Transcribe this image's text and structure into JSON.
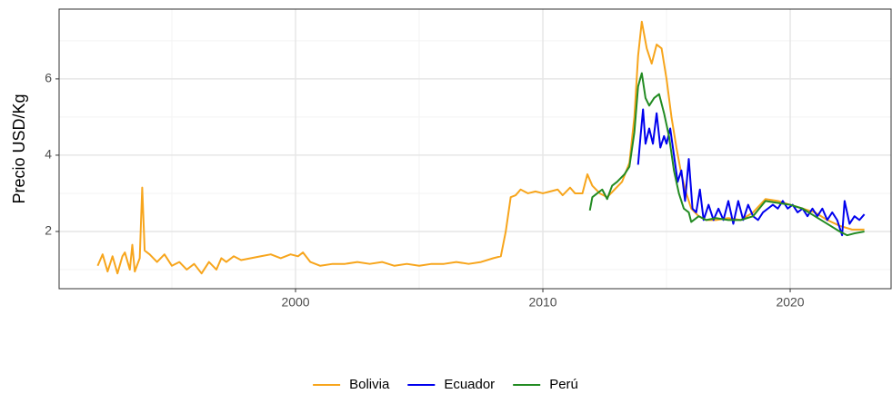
{
  "chart_data": {
    "type": "line",
    "y_label": "Precio USD/Kg",
    "xlim": [
      1990.44,
      2024.08
    ],
    "ylim": [
      0.5,
      7.83
    ],
    "xticks": [
      2000,
      2010,
      2020
    ],
    "yticks": [
      2,
      4,
      6
    ],
    "x_minor_ticks": [
      1995,
      2005,
      2015
    ],
    "y_minor_ticks": [
      1,
      3,
      5,
      7
    ],
    "grid": true,
    "legend": "bottom",
    "series": [
      {
        "name": "Bolivia",
        "color": "#f7a51c",
        "x": [
          1992.0,
          1992.2,
          1992.4,
          1992.6,
          1992.8,
          1993.0,
          1993.1,
          1993.3,
          1993.4,
          1993.5,
          1993.7,
          1993.8,
          1993.9,
          1994.1,
          1994.4,
          1994.7,
          1995.0,
          1995.3,
          1995.6,
          1995.9,
          1996.2,
          1996.5,
          1996.8,
          1997.0,
          1997.2,
          1997.5,
          1997.8,
          1998.2,
          1998.6,
          1999.0,
          1999.4,
          1999.8,
          2000.1,
          2000.3,
          2000.6,
          2001.0,
          2001.5,
          2002.0,
          2002.5,
          2003.0,
          2003.5,
          2004.0,
          2004.5,
          2005.0,
          2005.5,
          2006.0,
          2006.5,
          2007.0,
          2007.5,
          2008.0,
          2008.3,
          2008.5,
          2008.7,
          2008.9,
          2009.1,
          2009.4,
          2009.7,
          2010.0,
          2010.3,
          2010.6,
          2010.8,
          2011.1,
          2011.3,
          2011.6,
          2011.8,
          2012.0,
          2012.3,
          2012.6,
          2012.9,
          2013.2,
          2013.5,
          2013.7,
          2013.85,
          2014.0,
          2014.2,
          2014.4,
          2014.6,
          2014.8,
          2015.0,
          2015.2,
          2015.4,
          2015.6,
          2015.8,
          2016.0,
          2016.3,
          2016.6,
          2017.0,
          2017.5,
          2018.0,
          2018.5,
          2019.0,
          2019.5,
          2020.0,
          2020.5,
          2021.0,
          2021.5,
          2022.0,
          2022.5,
          2023.0
        ],
        "values": [
          1.1,
          1.4,
          0.95,
          1.35,
          0.9,
          1.35,
          1.45,
          1.0,
          1.65,
          0.95,
          1.3,
          3.15,
          1.5,
          1.4,
          1.2,
          1.4,
          1.1,
          1.2,
          1.0,
          1.15,
          0.9,
          1.2,
          1.0,
          1.3,
          1.2,
          1.35,
          1.25,
          1.3,
          1.35,
          1.4,
          1.3,
          1.4,
          1.35,
          1.45,
          1.2,
          1.1,
          1.15,
          1.15,
          1.2,
          1.15,
          1.2,
          1.1,
          1.15,
          1.1,
          1.15,
          1.15,
          1.2,
          1.15,
          1.2,
          1.3,
          1.35,
          2.0,
          2.9,
          2.95,
          3.1,
          3.0,
          3.05,
          3.0,
          3.05,
          3.1,
          2.95,
          3.15,
          3.0,
          3.0,
          3.5,
          3.2,
          3.0,
          2.9,
          3.1,
          3.3,
          3.8,
          5.0,
          6.6,
          7.5,
          6.8,
          6.4,
          6.9,
          6.8,
          6.0,
          5.0,
          4.2,
          3.5,
          3.0,
          2.6,
          2.4,
          2.3,
          2.3,
          2.35,
          2.3,
          2.5,
          2.85,
          2.8,
          2.7,
          2.6,
          2.5,
          2.3,
          2.15,
          2.05,
          2.05
        ]
      },
      {
        "name": "Ecuador",
        "color": "#0000ee",
        "x": [
          2013.85,
          2013.95,
          2014.05,
          2014.15,
          2014.3,
          2014.45,
          2014.6,
          2014.75,
          2014.9,
          2015.0,
          2015.15,
          2015.3,
          2015.45,
          2015.6,
          2015.75,
          2015.9,
          2016.05,
          2016.2,
          2016.35,
          2016.5,
          2016.7,
          2016.9,
          2017.1,
          2017.3,
          2017.5,
          2017.7,
          2017.9,
          2018.1,
          2018.3,
          2018.5,
          2018.7,
          2018.9,
          2019.1,
          2019.3,
          2019.5,
          2019.7,
          2019.9,
          2020.1,
          2020.3,
          2020.5,
          2020.7,
          2020.9,
          2021.1,
          2021.3,
          2021.5,
          2021.7,
          2021.9,
          2022.1,
          2022.2,
          2022.4,
          2022.6,
          2022.8,
          2023.0
        ],
        "values": [
          3.75,
          4.5,
          5.2,
          4.3,
          4.7,
          4.3,
          5.1,
          4.2,
          4.5,
          4.3,
          4.7,
          4.0,
          3.3,
          3.6,
          2.8,
          3.9,
          2.6,
          2.5,
          3.1,
          2.3,
          2.7,
          2.3,
          2.6,
          2.3,
          2.8,
          2.2,
          2.8,
          2.3,
          2.7,
          2.4,
          2.3,
          2.5,
          2.6,
          2.7,
          2.6,
          2.8,
          2.6,
          2.7,
          2.5,
          2.6,
          2.4,
          2.6,
          2.4,
          2.6,
          2.3,
          2.5,
          2.3,
          1.9,
          2.8,
          2.2,
          2.4,
          2.3,
          2.45
        ]
      },
      {
        "name": "Perú",
        "color": "#228b22",
        "x": [
          2011.9,
          2012.0,
          2012.2,
          2012.4,
          2012.6,
          2012.8,
          2013.0,
          2013.3,
          2013.5,
          2013.7,
          2013.85,
          2014.0,
          2014.15,
          2014.3,
          2014.5,
          2014.7,
          2014.9,
          2015.1,
          2015.3,
          2015.5,
          2015.7,
          2015.9,
          2016.0,
          2016.3,
          2016.6,
          2017.0,
          2017.5,
          2018.0,
          2018.5,
          2019.0,
          2019.5,
          2020.0,
          2020.5,
          2021.0,
          2021.5,
          2022.0,
          2022.3,
          2022.6,
          2023.0
        ],
        "values": [
          2.55,
          2.9,
          3.0,
          3.1,
          2.85,
          3.2,
          3.3,
          3.5,
          3.7,
          4.6,
          5.8,
          6.15,
          5.5,
          5.3,
          5.5,
          5.6,
          5.1,
          4.5,
          3.6,
          3.0,
          2.6,
          2.5,
          2.25,
          2.4,
          2.3,
          2.35,
          2.3,
          2.3,
          2.4,
          2.8,
          2.75,
          2.7,
          2.6,
          2.4,
          2.2,
          2.0,
          1.9,
          1.95,
          2.0
        ]
      }
    ]
  }
}
